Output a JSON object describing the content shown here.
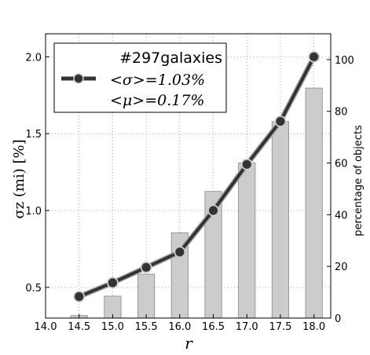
{
  "chart_data": {
    "type": "bar+line",
    "x": [
      14.5,
      15.0,
      15.5,
      16.0,
      16.5,
      17.0,
      17.5,
      18.0
    ],
    "xticks": [
      "14.0",
      "14.5",
      "15.0",
      "15.5",
      "16.0",
      "16.5",
      "17.0",
      "17.5",
      "18.0"
    ],
    "xlim": [
      14.0,
      18.25
    ],
    "xlabel": "r",
    "ylabel_left": "σz (mi) [%]",
    "ylim_left": [
      0.3,
      2.15
    ],
    "yticks_left": [
      "0.5",
      "1.0",
      "1.5",
      "2.0"
    ],
    "ylabel_right": "percentage of objects",
    "ylim_right": [
      0,
      110
    ],
    "yticks_right": [
      "0",
      "20",
      "40",
      "60",
      "80",
      "100"
    ],
    "grid": true,
    "legend_position": "top-left",
    "line_series": {
      "axis": "left",
      "values": [
        0.44,
        0.53,
        0.63,
        0.73,
        1.0,
        1.3,
        1.58,
        2.0
      ]
    },
    "bar_series": {
      "axis": "right",
      "values": [
        1,
        8.5,
        17,
        33,
        49,
        60,
        76,
        89
      ]
    },
    "legend": {
      "line1": "#297galaxies",
      "line2": "<σ>=1.03%",
      "line3": "<μ>=0.17%"
    },
    "colors": {
      "line": "#333333",
      "marker_face": "#333333",
      "marker_edge": "#cccccc",
      "bar_fill": "#cccccc",
      "bar_edge": "#888888",
      "grid": "#999999"
    }
  }
}
